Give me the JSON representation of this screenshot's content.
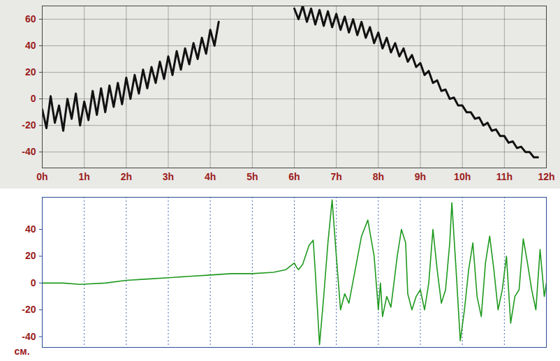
{
  "chart_data": [
    {
      "type": "line",
      "color": "#111111",
      "grid": true,
      "xlim": [
        0,
        12
      ],
      "ylim": [
        -52,
        70
      ],
      "xticks": [
        {
          "value": 0,
          "label": "0h"
        },
        {
          "value": 1,
          "label": "1h"
        },
        {
          "value": 2,
          "label": "2h"
        },
        {
          "value": 3,
          "label": "3h"
        },
        {
          "value": 4,
          "label": "4h"
        },
        {
          "value": 5,
          "label": "5h"
        },
        {
          "value": 6,
          "label": "6h"
        },
        {
          "value": 7,
          "label": "7h"
        },
        {
          "value": 8,
          "label": "8h"
        },
        {
          "value": 9,
          "label": "9h"
        },
        {
          "value": 10,
          "label": "10h"
        },
        {
          "value": 11,
          "label": "11h"
        },
        {
          "value": 12,
          "label": "12h"
        }
      ],
      "yticks": [
        -40,
        -20,
        0,
        20,
        40,
        60
      ],
      "x": [
        0,
        0.1,
        0.2,
        0.3,
        0.4,
        0.5,
        0.6,
        0.7,
        0.8,
        0.9,
        1.0,
        1.1,
        1.2,
        1.3,
        1.4,
        1.5,
        1.6,
        1.7,
        1.8,
        1.9,
        2.0,
        2.1,
        2.2,
        2.3,
        2.4,
        2.5,
        2.6,
        2.7,
        2.8,
        2.9,
        3.0,
        3.1,
        3.2,
        3.3,
        3.4,
        3.5,
        3.6,
        3.7,
        3.8,
        3.9,
        4.0,
        4.1,
        4.2,
        4.3,
        4.4,
        4.5,
        4.6,
        4.7,
        4.8,
        4.9,
        5.0,
        5.1,
        5.2,
        5.3,
        5.4,
        5.5,
        5.6,
        5.7,
        5.8,
        5.9,
        6.0,
        6.1,
        6.2,
        6.3,
        6.4,
        6.5,
        6.6,
        6.7,
        6.8,
        6.9,
        7.0,
        7.1,
        7.2,
        7.3,
        7.4,
        7.5,
        7.6,
        7.7,
        7.8,
        7.9,
        8.0,
        8.1,
        8.2,
        8.3,
        8.4,
        8.5,
        8.6,
        8.7,
        8.8,
        8.9,
        9.0,
        9.1,
        9.2,
        9.3,
        9.4,
        9.5,
        9.6,
        9.7,
        9.8,
        9.9,
        10.0,
        10.1,
        10.2,
        10.3,
        10.4,
        10.5,
        10.6,
        10.7,
        10.8,
        10.9,
        11.0,
        11.1,
        11.2,
        11.3,
        11.4,
        11.5,
        11.6,
        11.7,
        11.8
      ],
      "values": [
        -8,
        -22,
        2,
        -18,
        -5,
        -24,
        0,
        -15,
        4,
        -20,
        -2,
        -16,
        6,
        -12,
        8,
        -10,
        10,
        -6,
        12,
        -4,
        16,
        0,
        18,
        4,
        22,
        8,
        24,
        12,
        28,
        15,
        32,
        18,
        36,
        22,
        38,
        26,
        42,
        30,
        46,
        34,
        52,
        40,
        58,
        null,
        null,
        null,
        null,
        null,
        null,
        null,
        null,
        null,
        null,
        null,
        null,
        null,
        null,
        null,
        null,
        null,
        68,
        60,
        70,
        58,
        68,
        56,
        67,
        55,
        66,
        54,
        64,
        52,
        62,
        50,
        60,
        48,
        58,
        46,
        54,
        42,
        50,
        38,
        46,
        35,
        42,
        32,
        38,
        28,
        33,
        24,
        27,
        18,
        21,
        12,
        14,
        6,
        7,
        0,
        1,
        -5,
        -5,
        -10,
        -10,
        -15,
        -14,
        -20,
        -18,
        -24,
        -23,
        -28,
        -28,
        -33,
        -32,
        -37,
        -36,
        -40,
        -40,
        -44,
        -44
      ]
    },
    {
      "type": "line",
      "color": "#1f9a1f",
      "grid": "x",
      "tick_labels": "y",
      "ylabel": "см.",
      "xlim": [
        0,
        12
      ],
      "ylim": [
        -48,
        64
      ],
      "xticks": [
        1,
        2,
        3,
        4,
        5,
        6,
        7,
        8,
        9,
        10,
        11
      ],
      "yticks": [
        -40,
        -20,
        0,
        20,
        40
      ],
      "x": [
        0,
        0.5,
        0.9,
        1.5,
        2,
        2.5,
        3,
        3.5,
        4,
        4.5,
        5,
        5.5,
        5.8,
        6.0,
        6.05,
        6.1,
        6.2,
        6.35,
        6.45,
        6.5,
        6.6,
        6.7,
        6.8,
        6.9,
        7.0,
        7.1,
        7.2,
        7.3,
        7.45,
        7.6,
        7.75,
        7.9,
        8.0,
        8.05,
        8.1,
        8.2,
        8.3,
        8.45,
        8.55,
        8.65,
        8.7,
        8.8,
        8.9,
        9.0,
        9.1,
        9.2,
        9.3,
        9.4,
        9.5,
        9.6,
        9.7,
        9.75,
        9.85,
        9.95,
        10.05,
        10.15,
        10.25,
        10.35,
        10.45,
        10.55,
        10.65,
        10.75,
        10.85,
        10.95,
        11.05,
        11.15,
        11.25,
        11.35,
        11.45,
        11.55,
        11.65,
        11.75,
        11.85,
        11.95,
        12.0
      ],
      "values": [
        0,
        0,
        -1,
        0,
        2,
        3,
        4,
        5,
        6,
        7,
        7,
        8,
        10,
        15,
        12,
        10,
        14,
        28,
        32,
        8,
        -46,
        -10,
        30,
        62,
        20,
        -20,
        -8,
        -15,
        10,
        35,
        47,
        20,
        -20,
        0,
        -25,
        -10,
        -18,
        20,
        40,
        30,
        -8,
        -20,
        -10,
        -5,
        -20,
        0,
        40,
        10,
        -15,
        -5,
        30,
        60,
        10,
        -43,
        -20,
        10,
        30,
        -10,
        -25,
        15,
        35,
        10,
        -20,
        -5,
        20,
        -30,
        -10,
        -5,
        33,
        15,
        -5,
        -20,
        25,
        -10,
        0
      ]
    }
  ]
}
